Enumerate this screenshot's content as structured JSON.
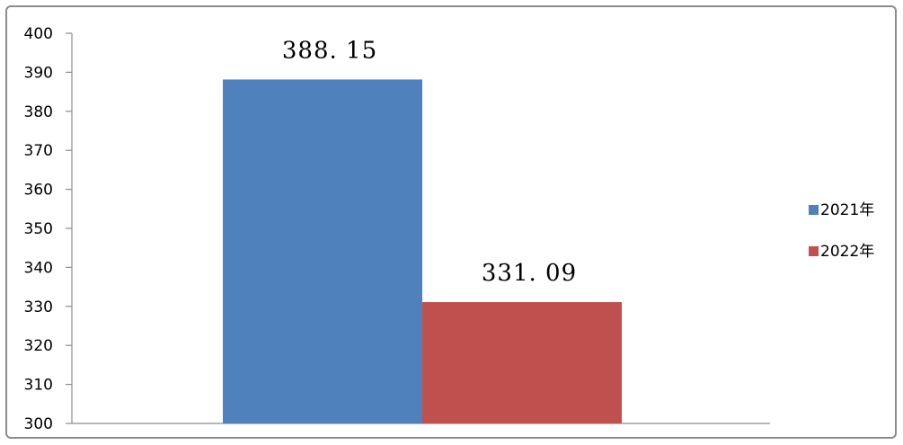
{
  "chart_data": {
    "type": "bar",
    "categories": [
      ""
    ],
    "series": [
      {
        "name": "2021年",
        "values": [
          388.15
        ],
        "value_label": "388. 15",
        "color": "#4f81bd"
      },
      {
        "name": "2022年",
        "values": [
          331.09
        ],
        "value_label": "331. 09",
        "color": "#c0504d"
      }
    ],
    "title": "",
    "xlabel": "",
    "ylabel": "",
    "ylim": [
      300,
      400
    ],
    "yticks": [
      300,
      310,
      320,
      330,
      340,
      350,
      360,
      370,
      380,
      390,
      400
    ],
    "grid": false,
    "legend_position": "right"
  }
}
